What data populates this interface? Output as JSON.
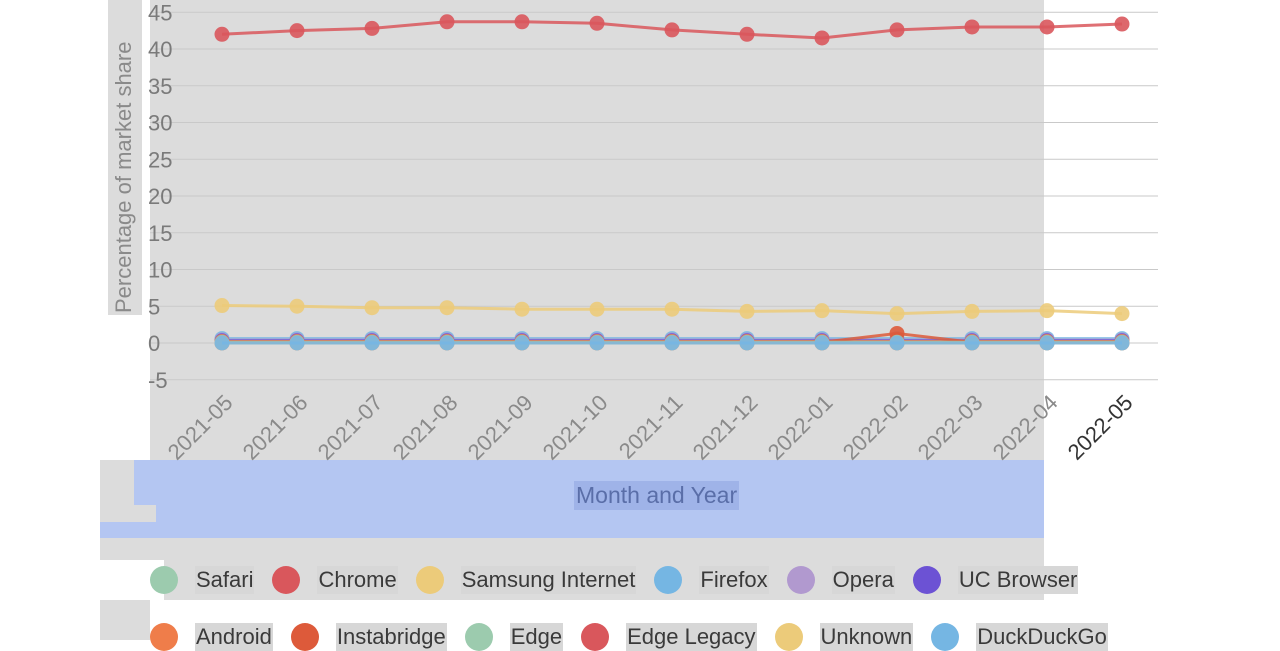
{
  "chart_data": {
    "type": "line",
    "ylabel": "Percentage of market share",
    "xlabel": "Month and Year",
    "ylim": [
      -5,
      45
    ],
    "yticks": [
      -5,
      0,
      5,
      10,
      15,
      20,
      25,
      30,
      35,
      40,
      45
    ],
    "grid": true,
    "legend_position": "bottom",
    "categories": [
      "2021-05",
      "2021-06",
      "2021-07",
      "2021-08",
      "2021-09",
      "2021-10",
      "2021-11",
      "2021-12",
      "2022-01",
      "2022-02",
      "2022-03",
      "2022-04",
      "2022-05"
    ],
    "series": [
      {
        "name": "Safari",
        "color": "#9ccbae",
        "values": [
          0.2,
          0.2,
          0.2,
          0.2,
          0.2,
          0.2,
          0.2,
          0.2,
          0.2,
          0.2,
          0.2,
          0.2,
          0.2
        ]
      },
      {
        "name": "Chrome",
        "color": "#d9575c",
        "values": [
          42.0,
          42.5,
          42.8,
          43.7,
          43.7,
          43.5,
          42.6,
          42.0,
          41.5,
          42.6,
          43.0,
          43.0,
          43.4
        ]
      },
      {
        "name": "Samsung Internet",
        "color": "#eccb7a",
        "values": [
          5.1,
          5.0,
          4.8,
          4.8,
          4.6,
          4.6,
          4.6,
          4.3,
          4.4,
          4.0,
          4.3,
          4.4,
          4.0
        ]
      },
      {
        "name": "Firefox",
        "color": "#75b6e3",
        "values": [
          0.6,
          0.6,
          0.6,
          0.6,
          0.6,
          0.6,
          0.6,
          0.6,
          0.6,
          0.6,
          0.6,
          0.6,
          0.6
        ]
      },
      {
        "name": "Opera",
        "color": "#b199cf",
        "values": [
          0.4,
          0.4,
          0.4,
          0.4,
          0.4,
          0.4,
          0.4,
          0.4,
          0.4,
          0.4,
          0.4,
          0.4,
          0.4
        ]
      },
      {
        "name": "UC Browser",
        "color": "#6c52d4",
        "values": [
          0.3,
          0.3,
          0.3,
          0.3,
          0.3,
          0.3,
          0.3,
          0.3,
          0.3,
          0.3,
          0.3,
          0.3,
          0.3
        ]
      },
      {
        "name": "Android",
        "color": "#ef7d4a",
        "values": [
          0.2,
          0.2,
          0.2,
          0.2,
          0.2,
          0.2,
          0.2,
          0.2,
          0.2,
          0.2,
          0.2,
          0.2,
          0.2
        ]
      },
      {
        "name": "Instabridge",
        "color": "#dd5a3a",
        "values": [
          0.1,
          0.1,
          0.1,
          0.1,
          0.1,
          0.1,
          0.1,
          0.1,
          0.1,
          1.3,
          0.1,
          0.1,
          0.1
        ]
      },
      {
        "name": "Edge",
        "color": "#9ccbae",
        "values": [
          0.1,
          0.1,
          0.1,
          0.1,
          0.1,
          0.1,
          0.1,
          0.1,
          0.1,
          0.1,
          0.1,
          0.1,
          0.1
        ]
      },
      {
        "name": "Edge Legacy",
        "color": "#d9575c",
        "values": [
          0.0,
          0.0,
          0.0,
          0.0,
          0.0,
          0.0,
          0.0,
          0.0,
          0.0,
          0.0,
          0.0,
          0.0,
          0.0
        ]
      },
      {
        "name": "Unknown",
        "color": "#eccb7a",
        "values": [
          0.0,
          0.0,
          0.0,
          0.0,
          0.0,
          0.0,
          0.0,
          0.0,
          0.0,
          0.0,
          0.0,
          0.0,
          0.0
        ]
      },
      {
        "name": "DuckDuckGo",
        "color": "#75b6e3",
        "values": [
          0.0,
          0.0,
          0.0,
          0.0,
          0.0,
          0.0,
          0.0,
          0.0,
          0.0,
          0.0,
          0.0,
          0.0,
          0.0
        ]
      }
    ]
  },
  "legend": {
    "row1": [
      {
        "label": "Safari",
        "color": "#9ccbae"
      },
      {
        "label": "Chrome",
        "color": "#d9575c"
      },
      {
        "label": "Samsung Internet",
        "color": "#eccb7a"
      },
      {
        "label": "Firefox",
        "color": "#75b6e3"
      },
      {
        "label": "Opera",
        "color": "#b199cf"
      },
      {
        "label": "UC Browser",
        "color": "#6c52d4"
      }
    ],
    "row2": [
      {
        "label": "Android",
        "color": "#ef7d4a"
      },
      {
        "label": "Instabridge",
        "color": "#dd5a3a"
      },
      {
        "label": "Edge",
        "color": "#9ccbae"
      },
      {
        "label": "Edge Legacy",
        "color": "#d9575c"
      },
      {
        "label": "Unknown",
        "color": "#eccb7a"
      },
      {
        "label": "DuckDuckGo",
        "color": "#75b6e3"
      }
    ]
  }
}
